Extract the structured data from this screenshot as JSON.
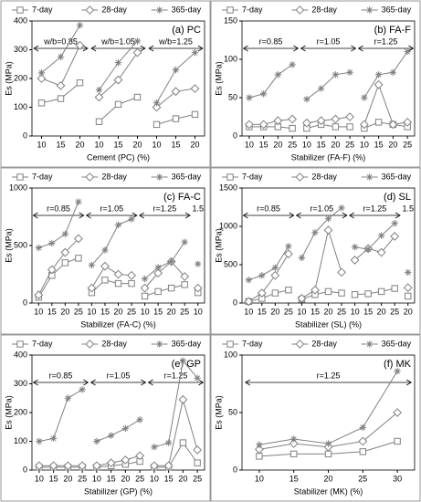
{
  "chart_data": [
    {
      "type": "line",
      "title": "(a) PC",
      "xlabel": "Cement (PC) (%)",
      "ylabel": "Es (MPa)",
      "series": [
        {
          "name": "7-day",
          "color": "#808080",
          "marker": "square"
        },
        {
          "name": "28-day",
          "color": "#808080",
          "marker": "diamond"
        },
        {
          "name": "365-day",
          "color": "#808080",
          "marker": "star"
        }
      ],
      "ylim": [
        0,
        400
      ],
      "yticks": [
        0,
        100,
        200,
        300,
        400
      ],
      "groups": [
        {
          "annotation": "w/b=0.85",
          "categories": [
            10,
            15,
            20
          ],
          "series": [
            {
              "values": [
                115,
                130,
                185
              ]
            },
            {
              "values": [
                200,
                175,
                315
              ]
            },
            {
              "values": [
                220,
                275,
                385
              ]
            }
          ]
        },
        {
          "annotation": "w/b=1.05",
          "categories": [
            10,
            15,
            20
          ],
          "series": [
            {
              "values": [
                50,
                110,
                135
              ]
            },
            {
              "values": [
                135,
                195,
                290
              ]
            },
            {
              "values": [
                160,
                255,
                330
              ]
            }
          ]
        },
        {
          "annotation": "w/b=1.25",
          "categories": [
            10,
            15,
            20
          ],
          "series": [
            {
              "values": [
                40,
                60,
                75
              ]
            },
            {
              "values": [
                100,
                155,
                165
              ]
            },
            {
              "values": [
                115,
                230,
                290
              ]
            }
          ]
        }
      ]
    },
    {
      "type": "line",
      "title": "(b) FA-F",
      "xlabel": "Stabilizer (FA-F) (%)",
      "ylabel": "Es (MPa)",
      "series": [
        {
          "name": "7-day",
          "color": "#808080",
          "marker": "square"
        },
        {
          "name": "28-day",
          "color": "#808080",
          "marker": "diamond"
        },
        {
          "name": "365-day",
          "color": "#808080",
          "marker": "star"
        }
      ],
      "ylim": [
        0,
        150
      ],
      "yticks": [
        0,
        50,
        100,
        150
      ],
      "groups": [
        {
          "annotation": "r=0.85",
          "categories": [
            10,
            15,
            20,
            25
          ],
          "series": [
            {
              "values": [
                12,
                12,
                12,
                10
              ]
            },
            {
              "values": [
                15,
                15,
                20,
                22
              ]
            },
            {
              "values": [
                50,
                55,
                80,
                93
              ]
            }
          ]
        },
        {
          "annotation": "r=1.05",
          "categories": [
            10,
            15,
            20,
            25
          ],
          "series": [
            {
              "values": [
                10,
                15,
                12,
                12
              ]
            },
            {
              "values": [
                17,
                20,
                22,
                25
              ]
            },
            {
              "values": [
                48,
                62,
                80,
                83
              ]
            }
          ]
        },
        {
          "annotation": "r=1.25",
          "categories": [
            10,
            15,
            20,
            25
          ],
          "series": [
            {
              "values": [
                10,
                18,
                15,
                12
              ]
            },
            {
              "values": [
                15,
                67,
                15,
                18
              ]
            },
            {
              "values": [
                50,
                80,
                83,
                110
              ]
            }
          ]
        }
      ]
    },
    {
      "type": "line",
      "title": "(c) FA-C",
      "xlabel": "Stabilizer (FA-C) (%)",
      "ylabel": "Es (MPa)",
      "series": [
        {
          "name": "7-day",
          "color": "#808080",
          "marker": "square"
        },
        {
          "name": "28-day",
          "color": "#808080",
          "marker": "diamond"
        },
        {
          "name": "365-day",
          "color": "#808080",
          "marker": "star"
        }
      ],
      "ylim": [
        0,
        1000
      ],
      "yticks": [
        0,
        500,
        1000
      ],
      "groups": [
        {
          "annotation": "r=0.85",
          "categories": [
            10,
            15,
            20,
            25
          ],
          "series": [
            {
              "values": [
                50,
                240,
                350,
                390
              ]
            },
            {
              "values": [
                70,
                290,
                440,
                560
              ]
            },
            {
              "values": [
                480,
                520,
                600,
                880
              ]
            }
          ]
        },
        {
          "annotation": "r=1.05",
          "categories": [
            10,
            15,
            20,
            25
          ],
          "series": [
            {
              "values": [
                90,
                200,
                170,
                170
              ]
            },
            {
              "values": [
                130,
                320,
                250,
                240
              ]
            },
            {
              "values": [
                330,
                460,
                680,
                730
              ]
            }
          ]
        },
        {
          "annotation": "r=1.25",
          "categories": [
            10,
            15,
            20,
            25
          ],
          "series": [
            {
              "values": [
                60,
                100,
                130,
                160
              ]
            },
            {
              "values": [
                130,
                260,
                360,
                230
              ]
            },
            {
              "values": [
                210,
                310,
                360,
                530
              ]
            }
          ]
        },
        {
          "annotation": "1.5",
          "categories": [
            10
          ],
          "series": [
            {
              "values": [
                90
              ]
            },
            {
              "values": [
                130
              ]
            },
            {
              "values": [
                340
              ]
            }
          ]
        }
      ]
    },
    {
      "type": "line",
      "title": "(d) SL",
      "xlabel": "Stabilizer (SL) (%)",
      "ylabel": "Es (MPa)",
      "series": [
        {
          "name": "7-day",
          "color": "#808080",
          "marker": "square"
        },
        {
          "name": "28-day",
          "color": "#808080",
          "marker": "diamond"
        },
        {
          "name": "365-day",
          "color": "#808080",
          "marker": "star"
        }
      ],
      "ylim": [
        0,
        1500
      ],
      "yticks": [
        0,
        500,
        1000,
        1500
      ],
      "groups": [
        {
          "annotation": "r=0.85",
          "categories": [
            10,
            15,
            20,
            25
          ],
          "series": [
            {
              "values": [
                20,
                60,
                130,
                170
              ]
            },
            {
              "values": [
                20,
                130,
                360,
                640
              ]
            },
            {
              "values": [
                300,
                360,
                460,
                740
              ]
            }
          ]
        },
        {
          "annotation": "r=1.05",
          "categories": [
            10,
            15,
            20,
            25
          ],
          "series": [
            {
              "values": [
                50,
                110,
                150,
                130
              ]
            },
            {
              "values": [
                60,
                170,
                950,
                400
              ]
            },
            {
              "values": [
                590,
                920,
                1100,
                1240
              ]
            }
          ]
        },
        {
          "annotation": "r=1.25",
          "categories": [
            10,
            15,
            20,
            25
          ],
          "series": [
            {
              "values": [
                110,
                120,
                150,
                190
              ]
            },
            {
              "values": [
                560,
                710,
                660,
                870
              ]
            },
            {
              "values": [
                730,
                700,
                880,
                1040
              ]
            }
          ]
        },
        {
          "annotation": "1.5",
          "categories": [
            20
          ],
          "series": [
            {
              "values": [
                90
              ]
            },
            {
              "values": [
                200
              ]
            },
            {
              "values": [
                400
              ]
            }
          ]
        }
      ]
    },
    {
      "type": "line",
      "title": "(e) GP",
      "xlabel": "Stabilizer (GP) (%)",
      "ylabel": "Es (MPa)",
      "series": [
        {
          "name": "7-day",
          "color": "#808080",
          "marker": "square"
        },
        {
          "name": "28-day",
          "color": "#808080",
          "marker": "diamond"
        },
        {
          "name": "365-day",
          "color": "#808080",
          "marker": "star"
        }
      ],
      "ylim": [
        0,
        400
      ],
      "yticks": [
        0,
        100,
        200,
        300,
        400
      ],
      "groups": [
        {
          "annotation": "r=0.85",
          "categories": [
            10,
            15,
            20,
            25
          ],
          "series": [
            {
              "values": [
                10,
                10,
                10,
                10
              ]
            },
            {
              "values": [
                15,
                15,
                15,
                15
              ]
            },
            {
              "values": [
                100,
                110,
                250,
                280
              ]
            }
          ]
        },
        {
          "annotation": "r=1.05",
          "categories": [
            10,
            15,
            20,
            25
          ],
          "series": [
            {
              "values": [
                10,
                15,
                20,
                30
              ]
            },
            {
              "values": [
                15,
                25,
                35,
                50
              ]
            },
            {
              "values": [
                100,
                120,
                145,
                175
              ]
            }
          ]
        },
        {
          "annotation": "r=1.25",
          "categories": [
            10,
            15,
            20,
            25
          ],
          "series": [
            {
              "values": [
                10,
                10,
                95,
                25
              ]
            },
            {
              "values": [
                15,
                15,
                245,
                70
              ]
            },
            {
              "values": [
                80,
                95,
                380,
                320
              ]
            }
          ]
        }
      ]
    },
    {
      "type": "line",
      "title": "(f) MK",
      "xlabel": "Stabilizer (MK) (%)",
      "ylabel": "Es (MPa)",
      "series": [
        {
          "name": "7-day",
          "color": "#808080",
          "marker": "square"
        },
        {
          "name": "28-day",
          "color": "#808080",
          "marker": "diamond"
        },
        {
          "name": "365-day",
          "color": "#808080",
          "marker": "star"
        }
      ],
      "ylim": [
        0,
        100
      ],
      "yticks": [
        0,
        50,
        100
      ],
      "groups": [
        {
          "annotation": "r=1.25",
          "categories": [
            10,
            15,
            20,
            25,
            30
          ],
          "series": [
            {
              "values": [
                12,
                14,
                14,
                16,
                25
              ]
            },
            {
              "values": [
                18,
                23,
                20,
                25,
                50
              ]
            },
            {
              "values": [
                22,
                27,
                23,
                37,
                86
              ]
            }
          ]
        }
      ]
    }
  ]
}
